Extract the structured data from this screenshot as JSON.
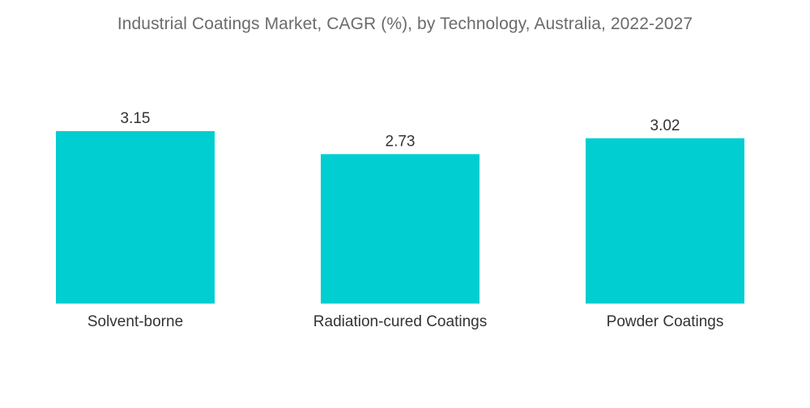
{
  "chart_data": {
    "type": "bar",
    "title": "Industrial Coatings Market, CAGR (%), by Technology, Australia, 2022-2027",
    "categories": [
      "Solvent-borne",
      "Radiation-cured Coatings",
      "Powder Coatings"
    ],
    "values": [
      3.15,
      2.73,
      3.02
    ],
    "value_labels": [
      "3.15",
      "2.73",
      "3.02"
    ],
    "xlabel": "",
    "ylabel": "",
    "ylim": [
      0,
      3.15
    ],
    "grid": false,
    "legend": "none",
    "bar_color": "#00CED1"
  }
}
